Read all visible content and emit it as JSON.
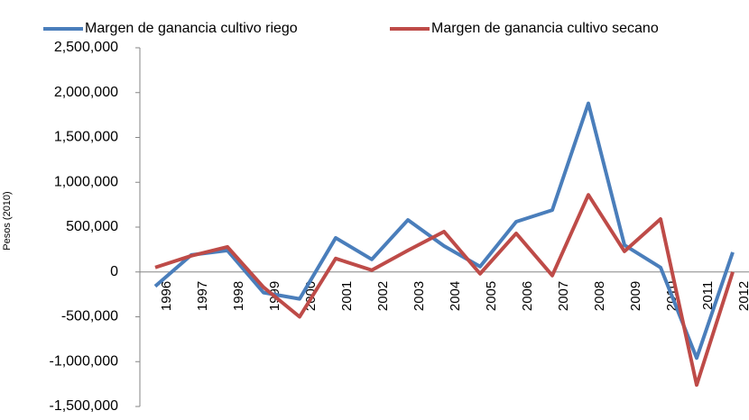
{
  "chart_data": {
    "type": "line",
    "y_label": "Pesos (2010)",
    "categories": [
      "1996",
      "1997",
      "1998",
      "1999",
      "2000",
      "2001",
      "2002",
      "2003",
      "2004",
      "2005",
      "2006",
      "2007",
      "2008",
      "2009",
      "2010",
      "2011",
      "2012"
    ],
    "series": [
      {
        "name": "Margen de ganancia cultivo riego",
        "color": "#4a7ebb",
        "values": [
          -160000,
          190000,
          240000,
          -230000,
          -300000,
          380000,
          140000,
          580000,
          290000,
          60000,
          560000,
          690000,
          1880000,
          300000,
          50000,
          -960000,
          220000
        ]
      },
      {
        "name": "Margen de ganancia cultivo secano",
        "color": "#be4b48",
        "values": [
          50000,
          180000,
          280000,
          -170000,
          -500000,
          150000,
          20000,
          240000,
          450000,
          -20000,
          430000,
          -40000,
          860000,
          230000,
          590000,
          -1260000,
          0
        ]
      }
    ],
    "ylim": [
      -1500000,
      2500000
    ],
    "yticks": [
      {
        "value": -1500000,
        "label": "-1,500,000"
      },
      {
        "value": -1000000,
        "label": "-1,000,000"
      },
      {
        "value": -500000,
        "label": "-500,000"
      },
      0,
      {
        "value": 500000,
        "label": "500,000"
      },
      {
        "value": 1000000,
        "label": "1,000,000"
      },
      {
        "value": 1500000,
        "label": "1,500,000"
      },
      {
        "value": 2000000,
        "label": "2,000,000"
      },
      {
        "value": 2500000,
        "label": "2,500,000"
      }
    ],
    "legend": "top"
  }
}
